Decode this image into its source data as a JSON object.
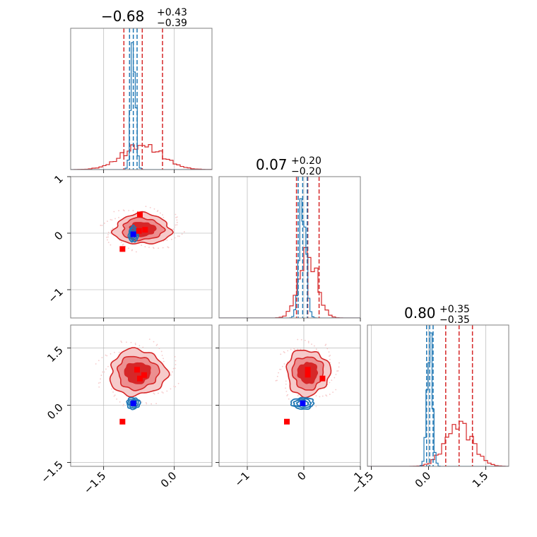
{
  "chart_data": {
    "type": "corner",
    "colors": {
      "red": "#d62728",
      "red_mid": "#ec8f90",
      "red_light": "#f6caca",
      "blue": "#1f77b4",
      "marker_red": "#ff0000",
      "marker_blue": "#0000ff"
    },
    "parameters": [
      {
        "title_value": "−0.68",
        "title_plus": "+0.43",
        "title_minus": "−0.39",
        "range": [
          -2.2,
          0.8
        ],
        "ticks": [
          -1.5,
          0.0
        ],
        "tick_labels": [
          "−1.5",
          "0.0"
        ],
        "red_quantiles": [
          -1.07,
          -0.68,
          -0.25
        ],
        "blue_quantiles": [
          -0.95,
          -0.87,
          -0.79
        ],
        "red_mean": -0.68,
        "red_sd": 0.42,
        "red_peak": 0.17,
        "blue_mean": -0.87,
        "blue_sd": 0.05,
        "blue_peak": 0.9
      },
      {
        "title_value": "0.07",
        "title_plus": "+0.20",
        "title_minus": "−0.20",
        "range": [
          -1.5,
          1.0
        ],
        "ticks": [
          -1,
          0,
          1
        ],
        "tick_labels": [
          "−1",
          "0",
          "1"
        ],
        "red_quantiles": [
          -0.13,
          0.07,
          0.27
        ],
        "blue_quantiles": [
          -0.1,
          -0.02,
          0.06
        ],
        "red_mean": 0.07,
        "red_sd": 0.16,
        "red_peak": 0.45,
        "blue_mean": -0.02,
        "blue_sd": 0.06,
        "blue_peak": 0.82
      },
      {
        "title_value": "0.80",
        "title_plus": "+0.35",
        "title_minus": "−0.35",
        "range": [
          -1.6,
          2.1
        ],
        "ticks": [
          -1.5,
          0.0,
          1.5
        ],
        "tick_labels": [
          "−1.5",
          "0.0",
          "1.5"
        ],
        "red_quantiles": [
          0.45,
          0.8,
          1.15
        ],
        "blue_quantiles": [
          -0.05,
          0.03,
          0.12
        ],
        "red_mean": 0.8,
        "red_sd": 0.35,
        "red_peak": 0.3,
        "blue_mean": 0.03,
        "blue_sd": 0.07,
        "blue_peak": 0.9
      }
    ],
    "joint_panels": [
      {
        "xpar": 0,
        "ypar": 1,
        "red_center": [
          -0.68,
          0.07
        ],
        "red_radius": [
          0.6,
          0.27
        ],
        "blue_center": [
          -0.87,
          -0.02
        ],
        "blue_radius": [
          0.1,
          0.14
        ],
        "red_markers": [
          [
            -0.73,
            0.33
          ],
          [
            -0.62,
            0.06
          ],
          [
            -1.1,
            -0.28
          ],
          [
            -0.75,
            0.04
          ]
        ],
        "blue_marker": [
          -0.87,
          -0.02
        ]
      },
      {
        "xpar": 0,
        "ypar": 2,
        "red_center": [
          -0.78,
          0.85
        ],
        "red_radius": [
          0.6,
          0.6
        ],
        "blue_center": [
          -0.87,
          0.05
        ],
        "blue_radius": [
          0.14,
          0.15
        ],
        "red_markers": [
          [
            -0.79,
            0.93
          ],
          [
            -0.64,
            0.79
          ],
          [
            -0.73,
            0.7
          ],
          [
            -1.1,
            -0.43
          ]
        ],
        "blue_marker": [
          -0.87,
          0.05
        ]
      },
      {
        "xpar": 1,
        "ypar": 2,
        "red_center": [
          0.07,
          0.85
        ],
        "red_radius": [
          0.38,
          0.6
        ],
        "blue_center": [
          -0.02,
          0.05
        ],
        "blue_radius": [
          0.2,
          0.15
        ],
        "red_markers": [
          [
            0.07,
            0.93
          ],
          [
            0.07,
            0.8
          ],
          [
            0.33,
            0.7
          ],
          [
            -0.3,
            -0.43
          ]
        ],
        "blue_marker": [
          -0.02,
          0.05
        ]
      }
    ]
  }
}
